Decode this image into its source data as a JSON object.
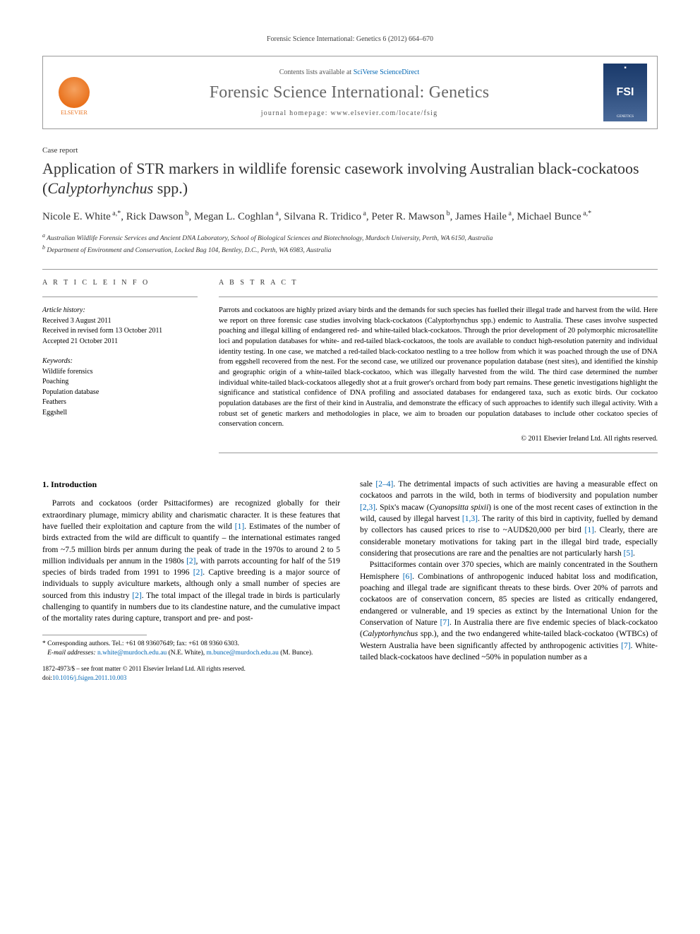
{
  "running_header": "Forensic Science International: Genetics 6 (2012) 664–670",
  "header": {
    "contents_prefix": "Contents lists available at ",
    "contents_link": "SciVerse ScienceDirect",
    "journal_name": "Forensic Science International: Genetics",
    "homepage_prefix": "journal homepage: ",
    "homepage_url": "www.elsevier.com/locate/fsig",
    "publisher": "ELSEVIER",
    "cover_abbrev": "FSI",
    "cover_sub": "GENETICS"
  },
  "article": {
    "case_report": "Case report",
    "title_plain": "Application of STR markers in wildlife forensic casework involving Australian black-cockatoos (",
    "title_species": "Calyptorhynchus",
    "title_suffix": " spp.)",
    "authors_html": "Nicole E. White <sup>a,*</sup>, Rick Dawson <sup>b</sup>, Megan L. Coghlan <sup>a</sup>, Silvana R. Tridico <sup>a</sup>, Peter R. Mawson <sup>b</sup>, James Haile <sup>a</sup>, Michael Bunce <sup>a,*</sup>",
    "affiliations": {
      "a": "Australian Wildlife Forensic Services and Ancient DNA Laboratory, School of Biological Sciences and Biotechnology, Murdoch University, Perth, WA 6150, Australia",
      "b": "Department of Environment and Conservation, Locked Bag 104, Bentley, D.C., Perth, WA 6983, Australia"
    }
  },
  "info": {
    "head": "A R T I C L E   I N F O",
    "history_label": "Article history:",
    "received": "Received 3 August 2011",
    "revised": "Received in revised form 13 October 2011",
    "accepted": "Accepted 21 October 2011",
    "keywords_label": "Keywords:",
    "keywords": [
      "Wildlife forensics",
      "Poaching",
      "Population database",
      "Feathers",
      "Eggshell"
    ]
  },
  "abstract": {
    "head": "A B S T R A C T",
    "text": "Parrots and cockatoos are highly prized aviary birds and the demands for such species has fuelled their illegal trade and harvest from the wild. Here we report on three forensic case studies involving black-cockatoos (Calyptorhynchus spp.) endemic to Australia. These cases involve suspected poaching and illegal killing of endangered red- and white-tailed black-cockatoos. Through the prior development of 20 polymorphic microsatellite loci and population databases for white- and red-tailed black-cockatoos, the tools are available to conduct high-resolution paternity and individual identity testing. In one case, we matched a red-tailed black-cockatoo nestling to a tree hollow from which it was poached through the use of DNA from eggshell recovered from the nest. For the second case, we utilized our provenance population database (nest sites), and identified the kinship and geographic origin of a white-tailed black-cockatoo, which was illegally harvested from the wild. The third case determined the number individual white-tailed black-cockatoos allegedly shot at a fruit grower's orchard from body part remains. These genetic investigations highlight the significance and statistical confidence of DNA profiling and associated databases for endangered taxa, such as exotic birds. Our cockatoo population databases are the first of their kind in Australia, and demonstrate the efficacy of such approaches to identify such illegal activity. With a robust set of genetic markers and methodologies in place, we aim to broaden our population databases to include other cockatoo species of conservation concern.",
    "copyright": "© 2011 Elsevier Ireland Ltd. All rights reserved."
  },
  "body": {
    "section_1": "1. Introduction",
    "para1": "Parrots and cockatoos (order Psittaciformes) are recognized globally for their extraordinary plumage, mimicry ability and charismatic character. It is these features that have fuelled their exploitation and capture from the wild [1]. Estimates of the number of birds extracted from the wild are difficult to quantify – the international estimates ranged from ~7.5 million birds per annum during the peak of trade in the 1970s to around 2 to 5 million individuals per annum in the 1980s [2], with parrots accounting for half of the 519 species of birds traded from 1991 to 1996 [2]. Captive breeding is a major source of individuals to supply aviculture markets, although only a small number of species are sourced from this industry [2]. The total impact of the illegal trade in birds is particularly challenging to quantify in numbers due to its clandestine nature, and the cumulative impact of the mortality rates during capture, transport and pre- and post-",
    "para2": "sale [2–4]. The detrimental impacts of such activities are having a measurable effect on cockatoos and parrots in the wild, both in terms of biodiversity and population number [2,3]. Spix's macaw (Cyanopsitta spixii) is one of the most recent cases of extinction in the wild, caused by illegal harvest [1,3]. The rarity of this bird in captivity, fuelled by demand by collectors has caused prices to rise to ~AUD$20,000 per bird [1]. Clearly, there are considerable monetary motivations for taking part in the illegal bird trade, especially considering that prosecutions are rare and the penalties are not particularly harsh [5].",
    "para3": "Psittaciformes contain over 370 species, which are mainly concentrated in the Southern Hemisphere [6]. Combinations of anthropogenic induced habitat loss and modification, poaching and illegal trade are significant threats to these birds. Over 20% of parrots and cockatoos are of conservation concern, 85 species are listed as critically endangered, endangered or vulnerable, and 19 species as extinct by the International Union for the Conservation of Nature [7]. In Australia there are five endemic species of black-cockatoo (Calyptorhynchus spp.), and the two endangered white-tailed black-cockatoo (WTBCs) of Western Australia have been significantly affected by anthropogenic activities [7]. White-tailed black-cockatoos have declined ~50% in population number as a"
  },
  "footnote": {
    "corr_label": "* Corresponding authors. Tel.: +61 08 93607649; fax: +61 08 9360 6303.",
    "email_label": "E-mail addresses:",
    "email1": "n.white@murdoch.edu.au",
    "email1_name": " (N.E. White),",
    "email2": "m.bunce@murdoch.edu.au",
    "email2_name": " (M. Bunce)."
  },
  "bottom": {
    "issn_line": "1872-4973/$ – see front matter © 2011 Elsevier Ireland Ltd. All rights reserved.",
    "doi_prefix": "doi:",
    "doi": "10.1016/j.fsigen.2011.10.003"
  },
  "colors": {
    "link": "#0066b3",
    "elsevier": "#e9711c",
    "rule": "#999999",
    "journal_name": "#666666"
  }
}
